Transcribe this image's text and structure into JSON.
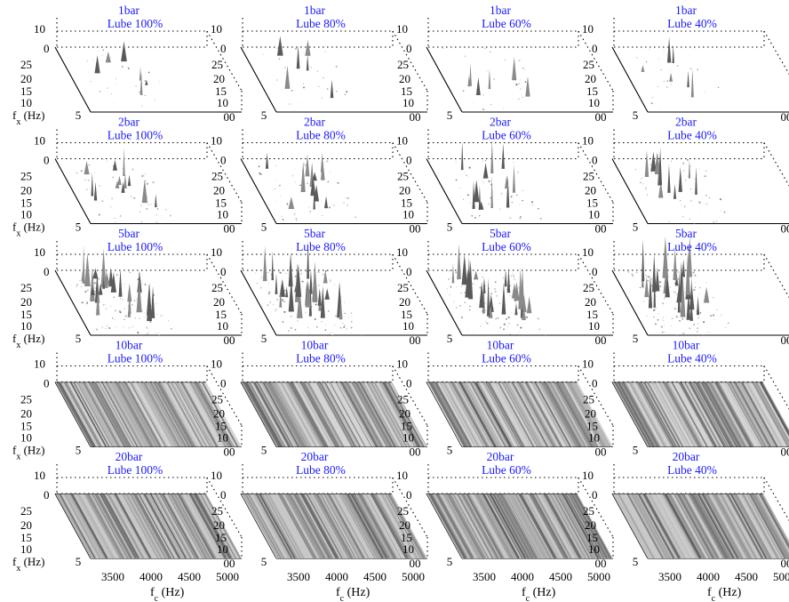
{
  "chart_data": {
    "type": "heatmap",
    "layout": {
      "rows": 5,
      "cols": 4
    },
    "pressures": [
      "1bar",
      "2bar",
      "5bar",
      "10bar",
      "20bar"
    ],
    "lubes": [
      "Lube 100%",
      "Lube 80%",
      "Lube 60%",
      "Lube 40%"
    ],
    "xlabel": "f_c (Hz)",
    "ylabel": "f_x (Hz)",
    "x_ticks": [
      "3500",
      "4000",
      "4500",
      "5000"
    ],
    "x_range": [
      3300,
      5200
    ],
    "depth_ticks": [
      "10",
      "15",
      "20",
      "25"
    ],
    "z_ticks": [
      "0",
      "10"
    ],
    "partial_edge_labels": [
      "5",
      "00"
    ],
    "grid": true,
    "colormap": "gray",
    "intensity_by_pressure": [
      0.15,
      0.35,
      0.55,
      0.8,
      0.7
    ],
    "spike_level_by_lube": [
      0.5,
      0.55,
      0.6,
      0.75
    ]
  }
}
